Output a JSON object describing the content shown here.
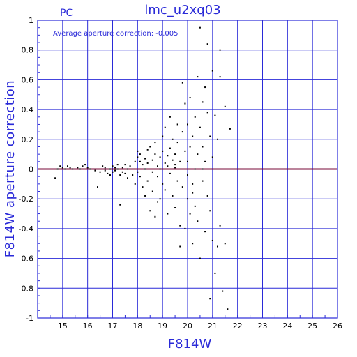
{
  "chart_data": {
    "type": "scatter",
    "title": "lmc_u2xq03",
    "corner_label": "PC",
    "annotation": "Average aperture correction:  -0.005",
    "xlabel": "F814W",
    "ylabel": "F814W aperture correction",
    "xlim": [
      14,
      26
    ],
    "ylim": [
      -1,
      1
    ],
    "xticks": [
      "15",
      "16",
      "17",
      "18",
      "19",
      "20",
      "21",
      "22",
      "23",
      "24",
      "25",
      "26"
    ],
    "yticks": [
      "1",
      "0.8",
      "0.6",
      "0.4",
      "0.2",
      "0",
      "-0.2",
      "-0.4",
      "-0.6",
      "-0.8",
      "-1"
    ],
    "grid": true,
    "reference_line": {
      "y": 0.0
    },
    "colors": {
      "axes": "#2a2ad8",
      "reference_line": "#7a0a3a",
      "points": "#000000"
    },
    "points": [
      [
        14.7,
        -0.06
      ],
      [
        14.8,
        0.0
      ],
      [
        14.9,
        0.02
      ],
      [
        15.0,
        0.01
      ],
      [
        15.1,
        0.0
      ],
      [
        15.2,
        0.02
      ],
      [
        15.3,
        0.01
      ],
      [
        15.4,
        0.0
      ],
      [
        15.6,
        0.01
      ],
      [
        15.7,
        0.0
      ],
      [
        15.8,
        0.02
      ],
      [
        15.9,
        0.03
      ],
      [
        16.0,
        0.01
      ],
      [
        16.1,
        0.0
      ],
      [
        16.3,
        -0.01
      ],
      [
        16.4,
        -0.12
      ],
      [
        16.5,
        -0.02
      ],
      [
        16.6,
        0.02
      ],
      [
        16.7,
        -0.01
      ],
      [
        16.7,
        0.01
      ],
      [
        16.8,
        -0.03
      ],
      [
        16.9,
        -0.04
      ],
      [
        16.9,
        0.0
      ],
      [
        17.0,
        0.02
      ],
      [
        17.0,
        -0.02
      ],
      [
        17.1,
        0.01
      ],
      [
        17.1,
        -0.01
      ],
      [
        17.2,
        0.03
      ],
      [
        17.2,
        0.0
      ],
      [
        17.3,
        -0.04
      ],
      [
        17.3,
        -0.24
      ],
      [
        17.4,
        0.01
      ],
      [
        17.4,
        -0.02
      ],
      [
        17.5,
        0.03
      ],
      [
        17.5,
        -0.03
      ],
      [
        17.6,
        0.0
      ],
      [
        17.6,
        -0.06
      ],
      [
        17.7,
        0.02
      ],
      [
        17.8,
        -0.04
      ],
      [
        17.9,
        0.05
      ],
      [
        17.9,
        -0.1
      ],
      [
        18.0,
        0.08
      ],
      [
        18.0,
        -0.02
      ],
      [
        18.0,
        0.12
      ],
      [
        18.1,
        0.05
      ],
      [
        18.1,
        -0.05
      ],
      [
        18.1,
        0.1
      ],
      [
        18.2,
        0.03
      ],
      [
        18.2,
        -0.12
      ],
      [
        18.3,
        0.07
      ],
      [
        18.3,
        0.0
      ],
      [
        18.3,
        -0.18
      ],
      [
        18.4,
        0.13
      ],
      [
        18.4,
        0.04
      ],
      [
        18.4,
        -0.08
      ],
      [
        18.5,
        0.15
      ],
      [
        18.5,
        -0.28
      ],
      [
        18.6,
        0.06
      ],
      [
        18.6,
        -0.02
      ],
      [
        18.6,
        -0.15
      ],
      [
        18.7,
        0.18
      ],
      [
        18.7,
        0.1
      ],
      [
        18.7,
        -0.32
      ],
      [
        18.8,
        0.02
      ],
      [
        18.8,
        -0.05
      ],
      [
        18.8,
        -0.22
      ],
      [
        18.9,
        0.08
      ],
      [
        18.9,
        -0.2
      ],
      [
        19.0,
        0.12
      ],
      [
        19.0,
        -0.1
      ],
      [
        19.0,
        0.22
      ],
      [
        19.1,
        0.04
      ],
      [
        19.1,
        -0.14
      ],
      [
        19.1,
        0.28
      ],
      [
        19.2,
        0.09
      ],
      [
        19.2,
        -0.3
      ],
      [
        19.3,
        0.14
      ],
      [
        19.3,
        -0.03
      ],
      [
        19.3,
        0.35
      ],
      [
        19.4,
        0.06
      ],
      [
        19.4,
        -0.18
      ],
      [
        19.4,
        0.2
      ],
      [
        19.5,
        0.01
      ],
      [
        19.5,
        -0.26
      ],
      [
        19.5,
        0.1
      ],
      [
        19.6,
        0.3
      ],
      [
        19.6,
        -0.08
      ],
      [
        19.6,
        0.18
      ],
      [
        19.7,
        -0.38
      ],
      [
        19.7,
        0.05
      ],
      [
        19.7,
        -0.52
      ],
      [
        19.8,
        0.25
      ],
      [
        19.8,
        -0.12
      ],
      [
        19.8,
        0.58
      ],
      [
        19.9,
        0.12
      ],
      [
        19.9,
        -0.4
      ],
      [
        19.9,
        0.44
      ],
      [
        20.0,
        0.05
      ],
      [
        20.0,
        -0.2
      ],
      [
        20.0,
        0.3
      ],
      [
        20.1,
        -0.3
      ],
      [
        20.1,
        0.15
      ],
      [
        20.1,
        0.48
      ],
      [
        20.2,
        -0.1
      ],
      [
        20.2,
        0.22
      ],
      [
        20.2,
        -0.5
      ],
      [
        20.3,
        0.35
      ],
      [
        20.3,
        0.0
      ],
      [
        20.3,
        -0.25
      ],
      [
        20.4,
        0.62
      ],
      [
        20.4,
        0.1
      ],
      [
        20.4,
        -0.35
      ],
      [
        20.5,
        0.95
      ],
      [
        20.5,
        0.28
      ],
      [
        20.5,
        -0.6
      ],
      [
        20.6,
        0.45
      ],
      [
        20.6,
        -0.08
      ],
      [
        20.6,
        0.15
      ],
      [
        20.7,
        -0.42
      ],
      [
        20.7,
        0.55
      ],
      [
        20.7,
        0.05
      ],
      [
        20.8,
        0.84
      ],
      [
        20.8,
        -0.18
      ],
      [
        20.8,
        0.38
      ],
      [
        20.9,
        -0.87
      ],
      [
        20.9,
        0.22
      ],
      [
        20.9,
        -0.28
      ],
      [
        21.0,
        0.66
      ],
      [
        21.0,
        0.08
      ],
      [
        21.0,
        -0.48
      ],
      [
        21.1,
        0.36
      ],
      [
        21.1,
        -0.7
      ],
      [
        21.2,
        0.2
      ],
      [
        21.2,
        -0.52
      ],
      [
        21.3,
        0.8
      ],
      [
        21.3,
        -0.38
      ],
      [
        21.4,
        -0.82
      ],
      [
        21.5,
        0.42
      ],
      [
        21.5,
        -0.5
      ],
      [
        21.6,
        -0.94
      ],
      [
        21.7,
        0.27
      ],
      [
        21.3,
        0.62
      ],
      [
        20.2,
        -0.16
      ],
      [
        19.2,
        0.02
      ],
      [
        18.9,
        0.0
      ],
      [
        20.6,
        0.0
      ],
      [
        19.5,
        0.03
      ],
      [
        20.0,
        -0.04
      ]
    ]
  }
}
